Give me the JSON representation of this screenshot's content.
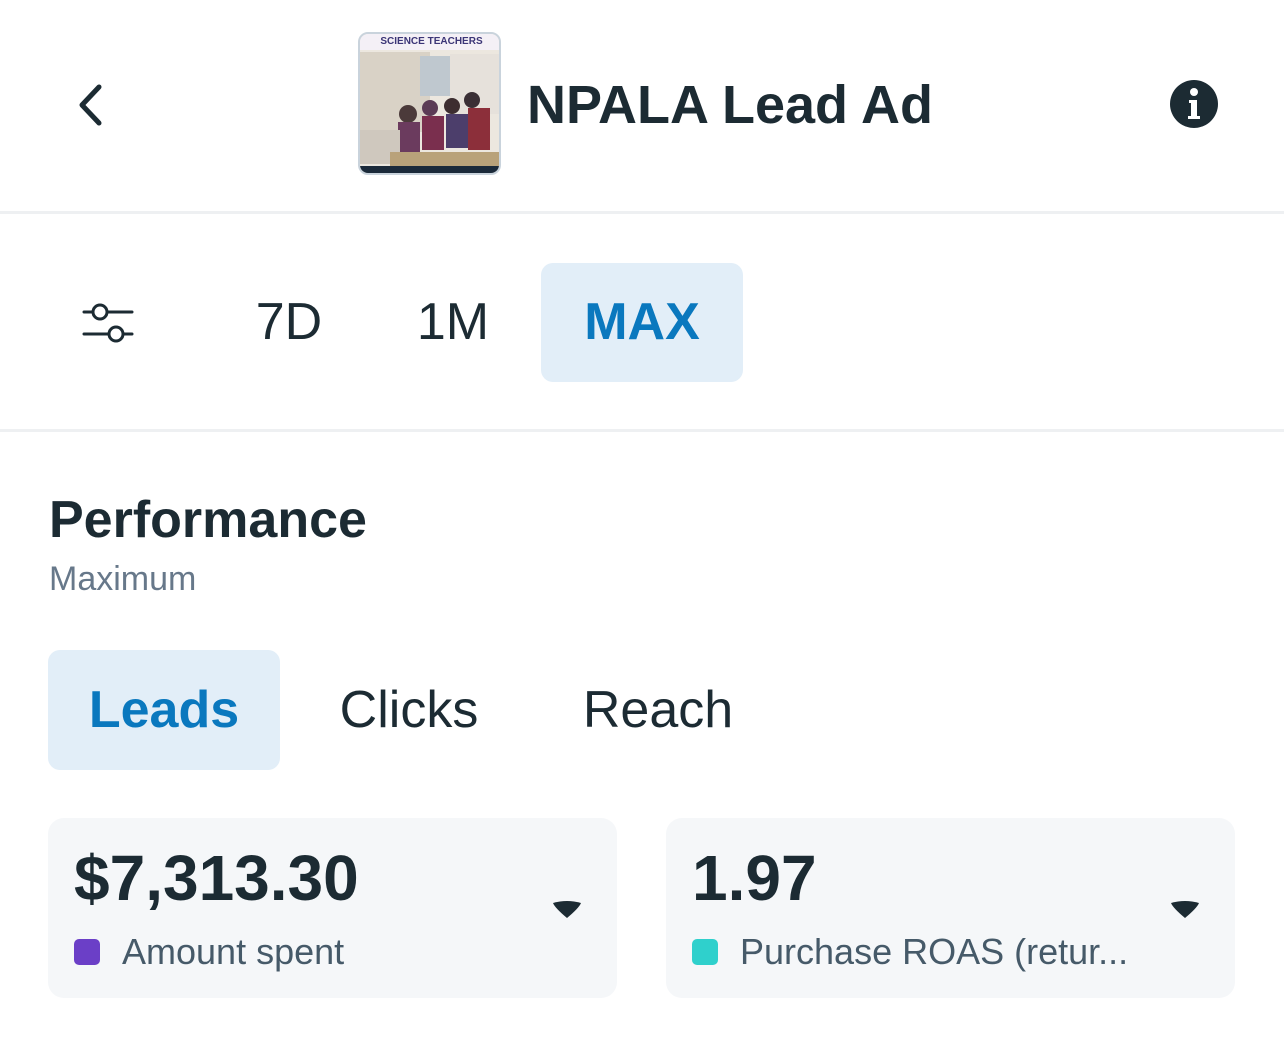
{
  "header": {
    "title": "NPALA Lead Ad",
    "thumbnail_caption": "SCIENCE TEACHERS",
    "back_icon": "chevron-left-icon",
    "info_icon": "info-circle-icon"
  },
  "date_range": {
    "filter_icon": "sliders-icon",
    "options": [
      {
        "label": "7D",
        "selected": false
      },
      {
        "label": "1M",
        "selected": false
      },
      {
        "label": "MAX",
        "selected": true
      }
    ]
  },
  "performance": {
    "title": "Performance",
    "subtitle": "Maximum",
    "tabs": [
      {
        "label": "Leads",
        "selected": true
      },
      {
        "label": "Clicks",
        "selected": false
      },
      {
        "label": "Reach",
        "selected": false
      }
    ],
    "cards": [
      {
        "value": "$7,313.30",
        "label": "Amount spent",
        "color": "#6b3fc7"
      },
      {
        "value": "1.97",
        "label": "Purchase ROAS (retur...",
        "color": "#2fd0cc"
      }
    ]
  },
  "colors": {
    "accent": "#0a78be",
    "selected_bg": "#e2eef8",
    "text": "#1c2b33"
  }
}
